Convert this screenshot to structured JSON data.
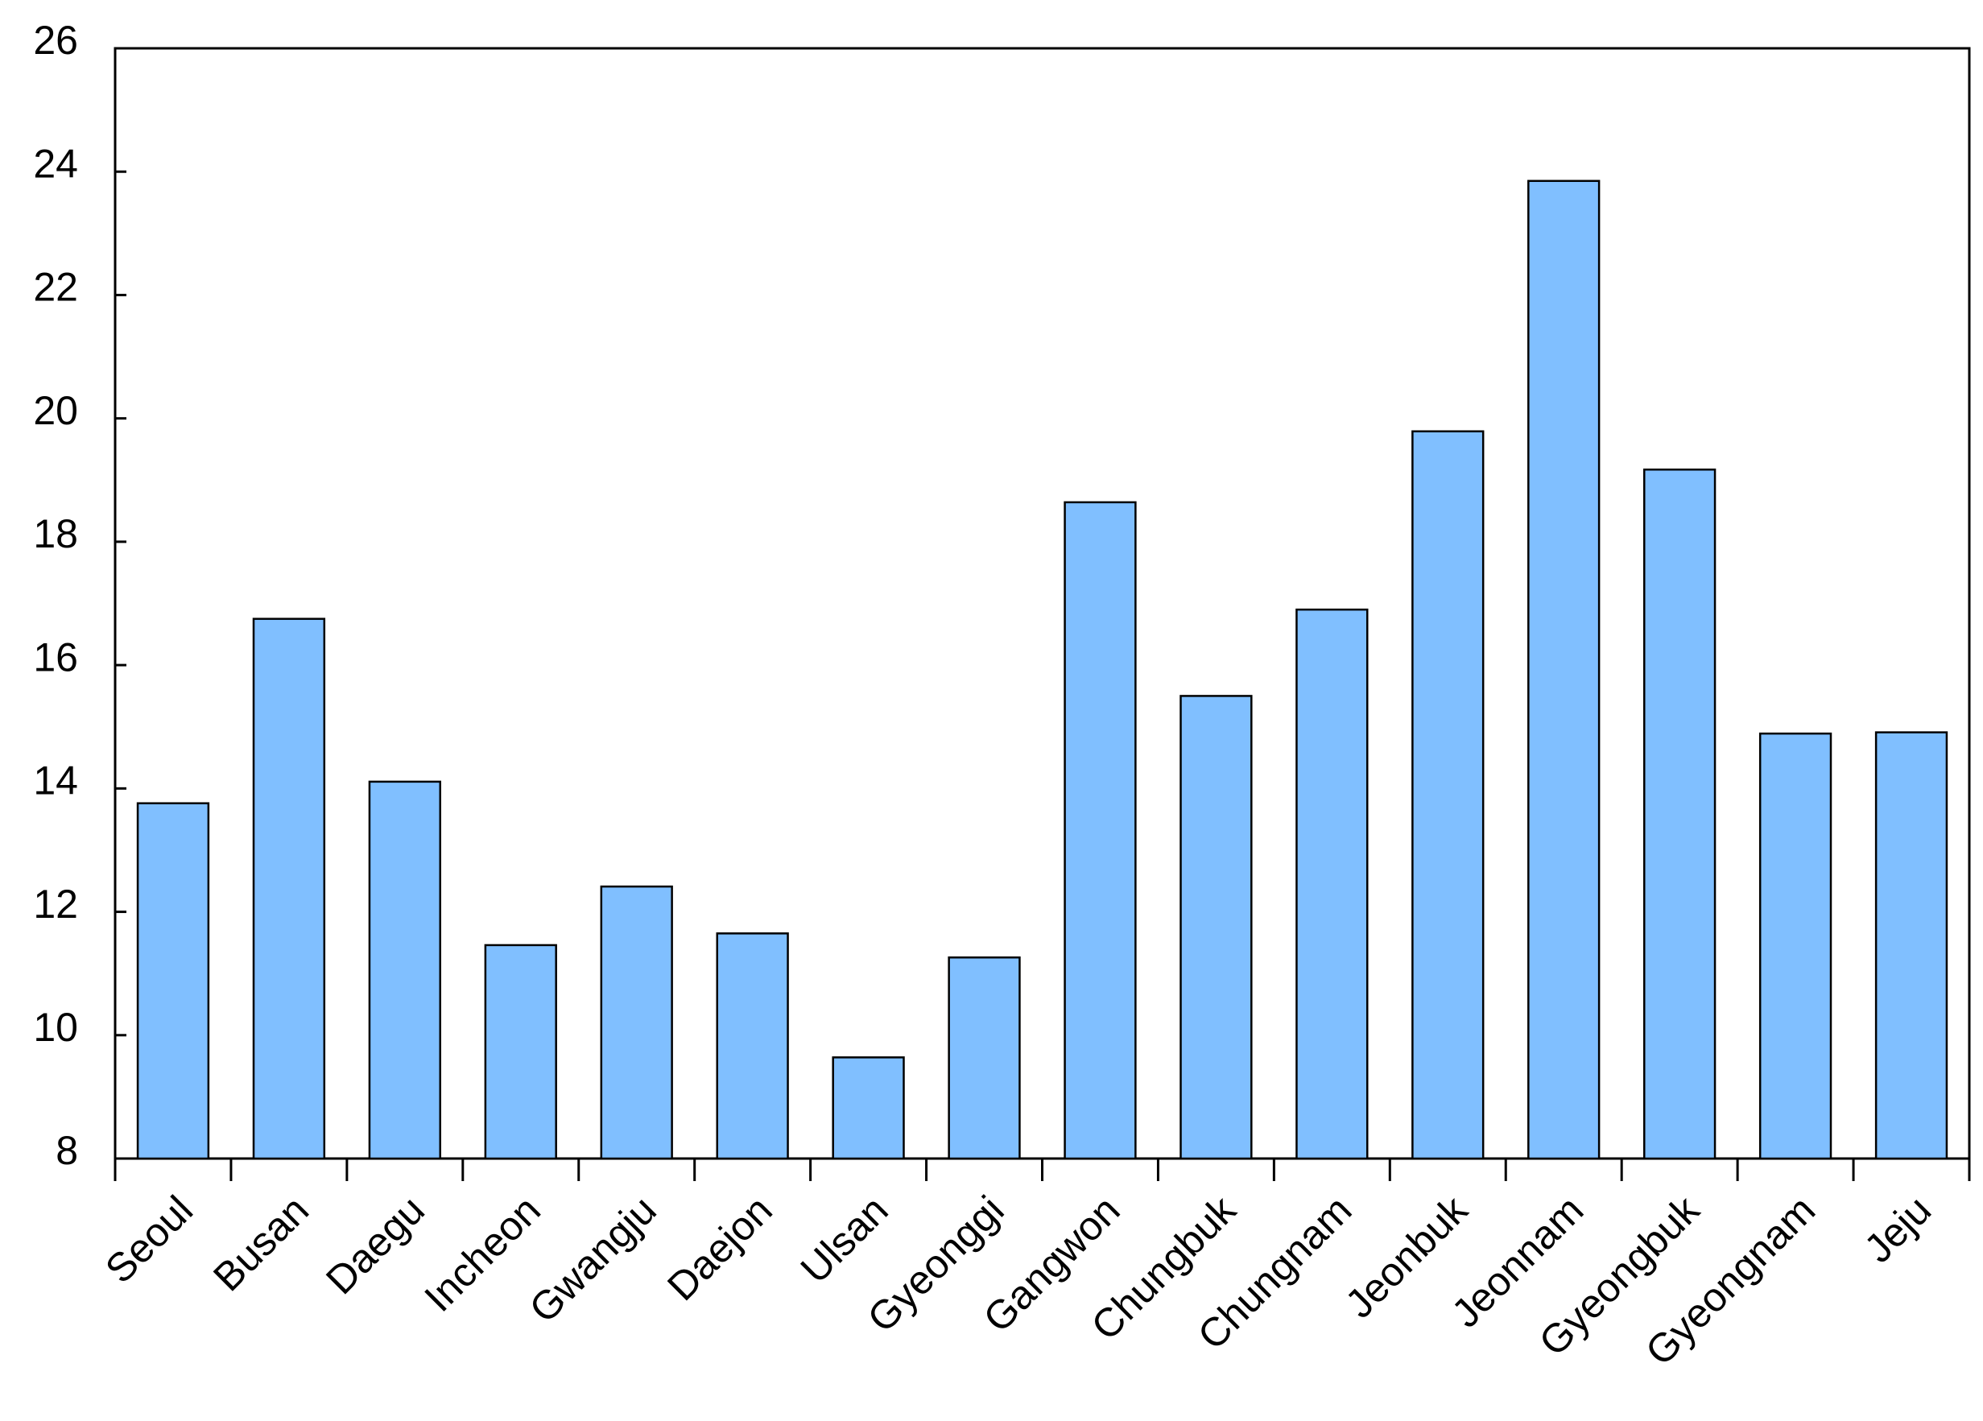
{
  "chart_data": {
    "type": "bar",
    "categories": [
      "Seoul",
      "Busan",
      "Daegu",
      "Incheon",
      "Gwangju",
      "Daejon",
      "Ulsan",
      "Gyeonggi",
      "Gangwon",
      "Chungbuk",
      "Chungnam",
      "Jeonbuk",
      "Jeonnam",
      "Gyeongbuk",
      "Gyeongnam",
      "Jeju"
    ],
    "values": [
      13.76,
      16.75,
      14.11,
      11.46,
      12.41,
      11.65,
      9.64,
      11.26,
      18.64,
      15.5,
      16.9,
      19.79,
      23.85,
      19.17,
      14.89,
      14.91
    ],
    "color": "#80bfff",
    "ylim": [
      8,
      26
    ],
    "yticks": [
      8,
      10,
      12,
      14,
      16,
      18,
      20,
      22,
      24,
      26
    ],
    "grid": false
  }
}
